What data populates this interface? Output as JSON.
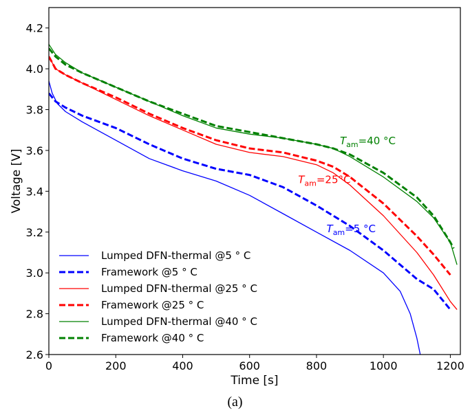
{
  "caption": "(a)",
  "chart_data": {
    "type": "line",
    "xlabel": "Time [s]",
    "ylabel": "Voltage [V]",
    "xlim": [
      0,
      1230
    ],
    "ylim": [
      2.6,
      4.3
    ],
    "xticks": [
      0,
      200,
      400,
      600,
      800,
      1000,
      1200
    ],
    "yticks": [
      2.6,
      2.8,
      3.0,
      3.2,
      3.4,
      3.6,
      3.8,
      4.0,
      4.2
    ],
    "xtick_labels": [
      "0",
      "200",
      "400",
      "600",
      "800",
      "1000",
      "1200"
    ],
    "ytick_labels": [
      "2.6",
      "2.8",
      "3.0",
      "3.2",
      "3.4",
      "3.6",
      "3.8",
      "4.0",
      "4.2"
    ],
    "grid": false,
    "legend_position": "bottom-left",
    "annotations": [
      {
        "main": "T",
        "sub": "am",
        "rest": "=40 °C",
        "x": 870,
        "y": 3.63,
        "color": "#008000"
      },
      {
        "main": "T",
        "sub": "am",
        "rest": "=25°C",
        "x": 745,
        "y": 3.44,
        "color": "#ff0000"
      },
      {
        "main": "T",
        "sub": "am",
        "rest": "=5 °C",
        "x": 830,
        "y": 3.2,
        "color": "#0000ff"
      }
    ],
    "series": [
      {
        "name": "Lumped DFN-thermal @5$^\\circ$C",
        "label": "Lumped DFN-thermal @5 ° C",
        "color": "#0000ff",
        "style": "solid",
        "x": [
          0,
          10,
          25,
          50,
          100,
          200,
          300,
          400,
          500,
          600,
          700,
          800,
          900,
          1000,
          1050,
          1080,
          1100,
          1110
        ],
        "y": [
          3.94,
          3.88,
          3.83,
          3.79,
          3.74,
          3.65,
          3.56,
          3.5,
          3.45,
          3.38,
          3.29,
          3.2,
          3.11,
          3.0,
          2.91,
          2.8,
          2.68,
          2.6
        ]
      },
      {
        "name": "Framework @5$^\\circ$C",
        "label": "Framework @5 ° C",
        "color": "#0000ff",
        "style": "dashed",
        "x": [
          0,
          20,
          50,
          100,
          200,
          300,
          400,
          500,
          600,
          700,
          800,
          900,
          1000,
          1100,
          1150,
          1200
        ],
        "y": [
          3.88,
          3.84,
          3.81,
          3.77,
          3.71,
          3.63,
          3.56,
          3.51,
          3.48,
          3.42,
          3.33,
          3.23,
          3.11,
          2.97,
          2.92,
          2.82
        ]
      },
      {
        "name": "Lumped DFN-thermal @25$^\\circ$C",
        "label": "Lumped DFN-thermal @25 ° C",
        "color": "#ff0000",
        "style": "solid",
        "x": [
          0,
          20,
          50,
          100,
          200,
          300,
          400,
          500,
          600,
          700,
          800,
          850,
          900,
          1000,
          1100,
          1150,
          1200,
          1220
        ],
        "y": [
          4.06,
          4.0,
          3.97,
          3.93,
          3.85,
          3.77,
          3.7,
          3.63,
          3.59,
          3.57,
          3.53,
          3.49,
          3.43,
          3.28,
          3.1,
          2.99,
          2.86,
          2.82
        ]
      },
      {
        "name": "Framework @25$^\\circ$C",
        "label": "Framework @25 ° C",
        "color": "#ff0000",
        "style": "dashed",
        "x": [
          0,
          20,
          50,
          100,
          200,
          300,
          400,
          500,
          600,
          700,
          800,
          850,
          900,
          1000,
          1100,
          1150,
          1200
        ],
        "y": [
          4.06,
          4.0,
          3.97,
          3.93,
          3.86,
          3.78,
          3.71,
          3.65,
          3.61,
          3.59,
          3.55,
          3.52,
          3.47,
          3.34,
          3.18,
          3.09,
          2.99
        ]
      },
      {
        "name": "Lumped DFN-thermal @40$^\\circ$C",
        "label": "Lumped DFN-thermal @40 ° C",
        "color": "#008000",
        "style": "solid",
        "x": [
          0,
          20,
          50,
          100,
          200,
          300,
          400,
          500,
          600,
          700,
          800,
          850,
          900,
          1000,
          1100,
          1150,
          1200,
          1220
        ],
        "y": [
          4.12,
          4.07,
          4.03,
          3.98,
          3.91,
          3.84,
          3.77,
          3.71,
          3.68,
          3.66,
          3.63,
          3.61,
          3.57,
          3.47,
          3.35,
          3.27,
          3.15,
          3.04
        ]
      },
      {
        "name": "Framework @40$^\\circ$C",
        "label": "Framework @40 ° C",
        "color": "#008000",
        "style": "dashed",
        "x": [
          0,
          20,
          50,
          100,
          200,
          300,
          400,
          500,
          600,
          700,
          800,
          850,
          900,
          1000,
          1100,
          1150,
          1200,
          1210
        ],
        "y": [
          4.1,
          4.06,
          4.02,
          3.98,
          3.91,
          3.84,
          3.78,
          3.72,
          3.69,
          3.66,
          3.63,
          3.61,
          3.58,
          3.49,
          3.37,
          3.28,
          3.15,
          3.12
        ]
      }
    ]
  }
}
